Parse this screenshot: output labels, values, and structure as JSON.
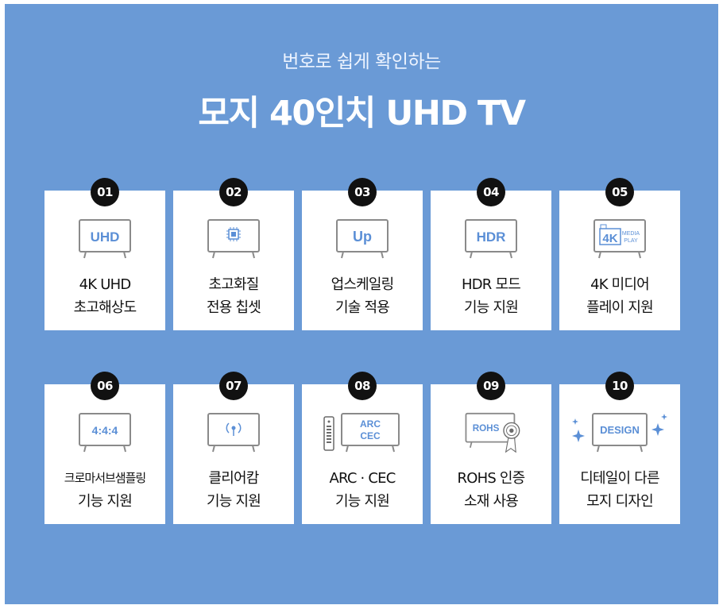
{
  "header": {
    "subtitle": "번호로 쉽게 확인하는",
    "title": "모지 40인치 UHD TV"
  },
  "colors": {
    "panel": "#6a9ad6",
    "accent": "#5b8fd6",
    "card": "#ffffff",
    "badge": "#111111"
  },
  "features": [
    {
      "num": "01",
      "icon": "uhd-tv-icon",
      "icon_text": "UHD",
      "line1": "4K UHD",
      "line2": "초고해상도"
    },
    {
      "num": "02",
      "icon": "chip-tv-icon",
      "icon_text": "",
      "line1": "초고화질",
      "line2": "전용 칩셋"
    },
    {
      "num": "03",
      "icon": "upscaling-tv-icon",
      "icon_text": "Up",
      "line1": "업스케일링",
      "line2": "기술 적용"
    },
    {
      "num": "04",
      "icon": "hdr-tv-icon",
      "icon_text": "HDR",
      "line1": "HDR 모드",
      "line2": "기능 지원"
    },
    {
      "num": "05",
      "icon": "media-play-tv-icon",
      "icon_text": "4K",
      "icon_text2": "MEDIA",
      "icon_text3": "PLAY",
      "line1": "4K 미디어",
      "line2": "플레이 지원"
    },
    {
      "num": "06",
      "icon": "chroma-tv-icon",
      "icon_text": "4:4:4",
      "line1": "크로마서브샘플링",
      "line2": "기능 지원"
    },
    {
      "num": "07",
      "icon": "clear-cam-tv-icon",
      "icon_text": "",
      "line1": "클리어캄",
      "line2": "기능 지원"
    },
    {
      "num": "08",
      "icon": "arc-cec-tv-icon",
      "icon_text": "ARC",
      "icon_text2": "CEC",
      "line1": "ARC · CEC",
      "line2": "기능 지원"
    },
    {
      "num": "09",
      "icon": "rohs-tv-icon",
      "icon_text": "ROHS",
      "line1": "ROHS 인증",
      "line2": "소재 사용"
    },
    {
      "num": "10",
      "icon": "design-tv-icon",
      "icon_text": "DESIGN",
      "line1": "디테일이 다른",
      "line2": "모지 디자인"
    }
  ]
}
